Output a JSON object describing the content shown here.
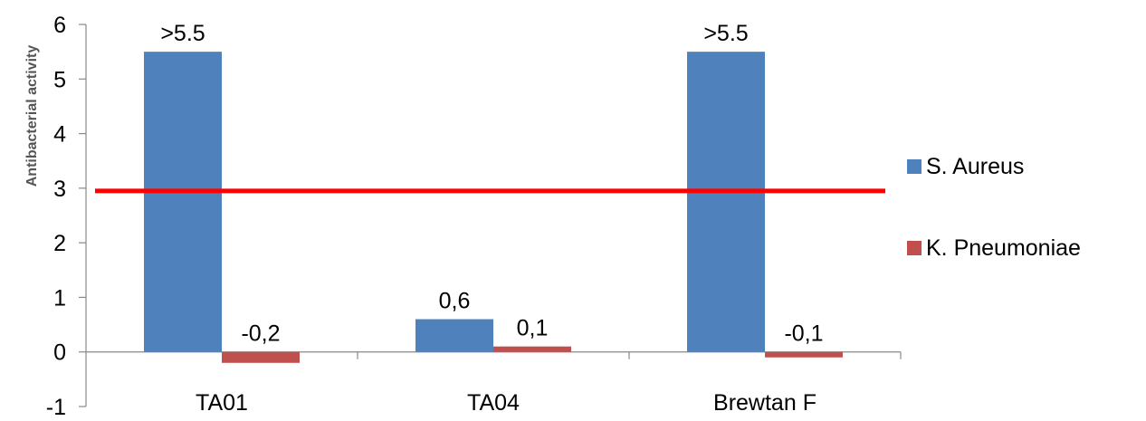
{
  "chart_data": {
    "type": "bar",
    "title": "",
    "xlabel": "",
    "ylabel": "Antibacterial activity",
    "ylim": [
      -1,
      6
    ],
    "yticks": [
      -1,
      0,
      1,
      2,
      3,
      4,
      5,
      6
    ],
    "categories": [
      "TA01",
      "TA04",
      "Brewtan F"
    ],
    "series": [
      {
        "name": "S. Aureus",
        "color": "#4F81BD",
        "values": [
          5.5,
          0.6,
          5.5
        ],
        "labels": [
          ">5.5",
          "0,6",
          ">5.5"
        ]
      },
      {
        "name": "K. Pneumoniae",
        "color": "#C0504D",
        "values": [
          -0.2,
          0.1,
          -0.1
        ],
        "labels": [
          "-0,2",
          "0,1",
          "-0,1"
        ]
      }
    ],
    "threshold": {
      "value": 2.95,
      "color": "#FF0000"
    },
    "legend_position": "right",
    "grid": false
  }
}
